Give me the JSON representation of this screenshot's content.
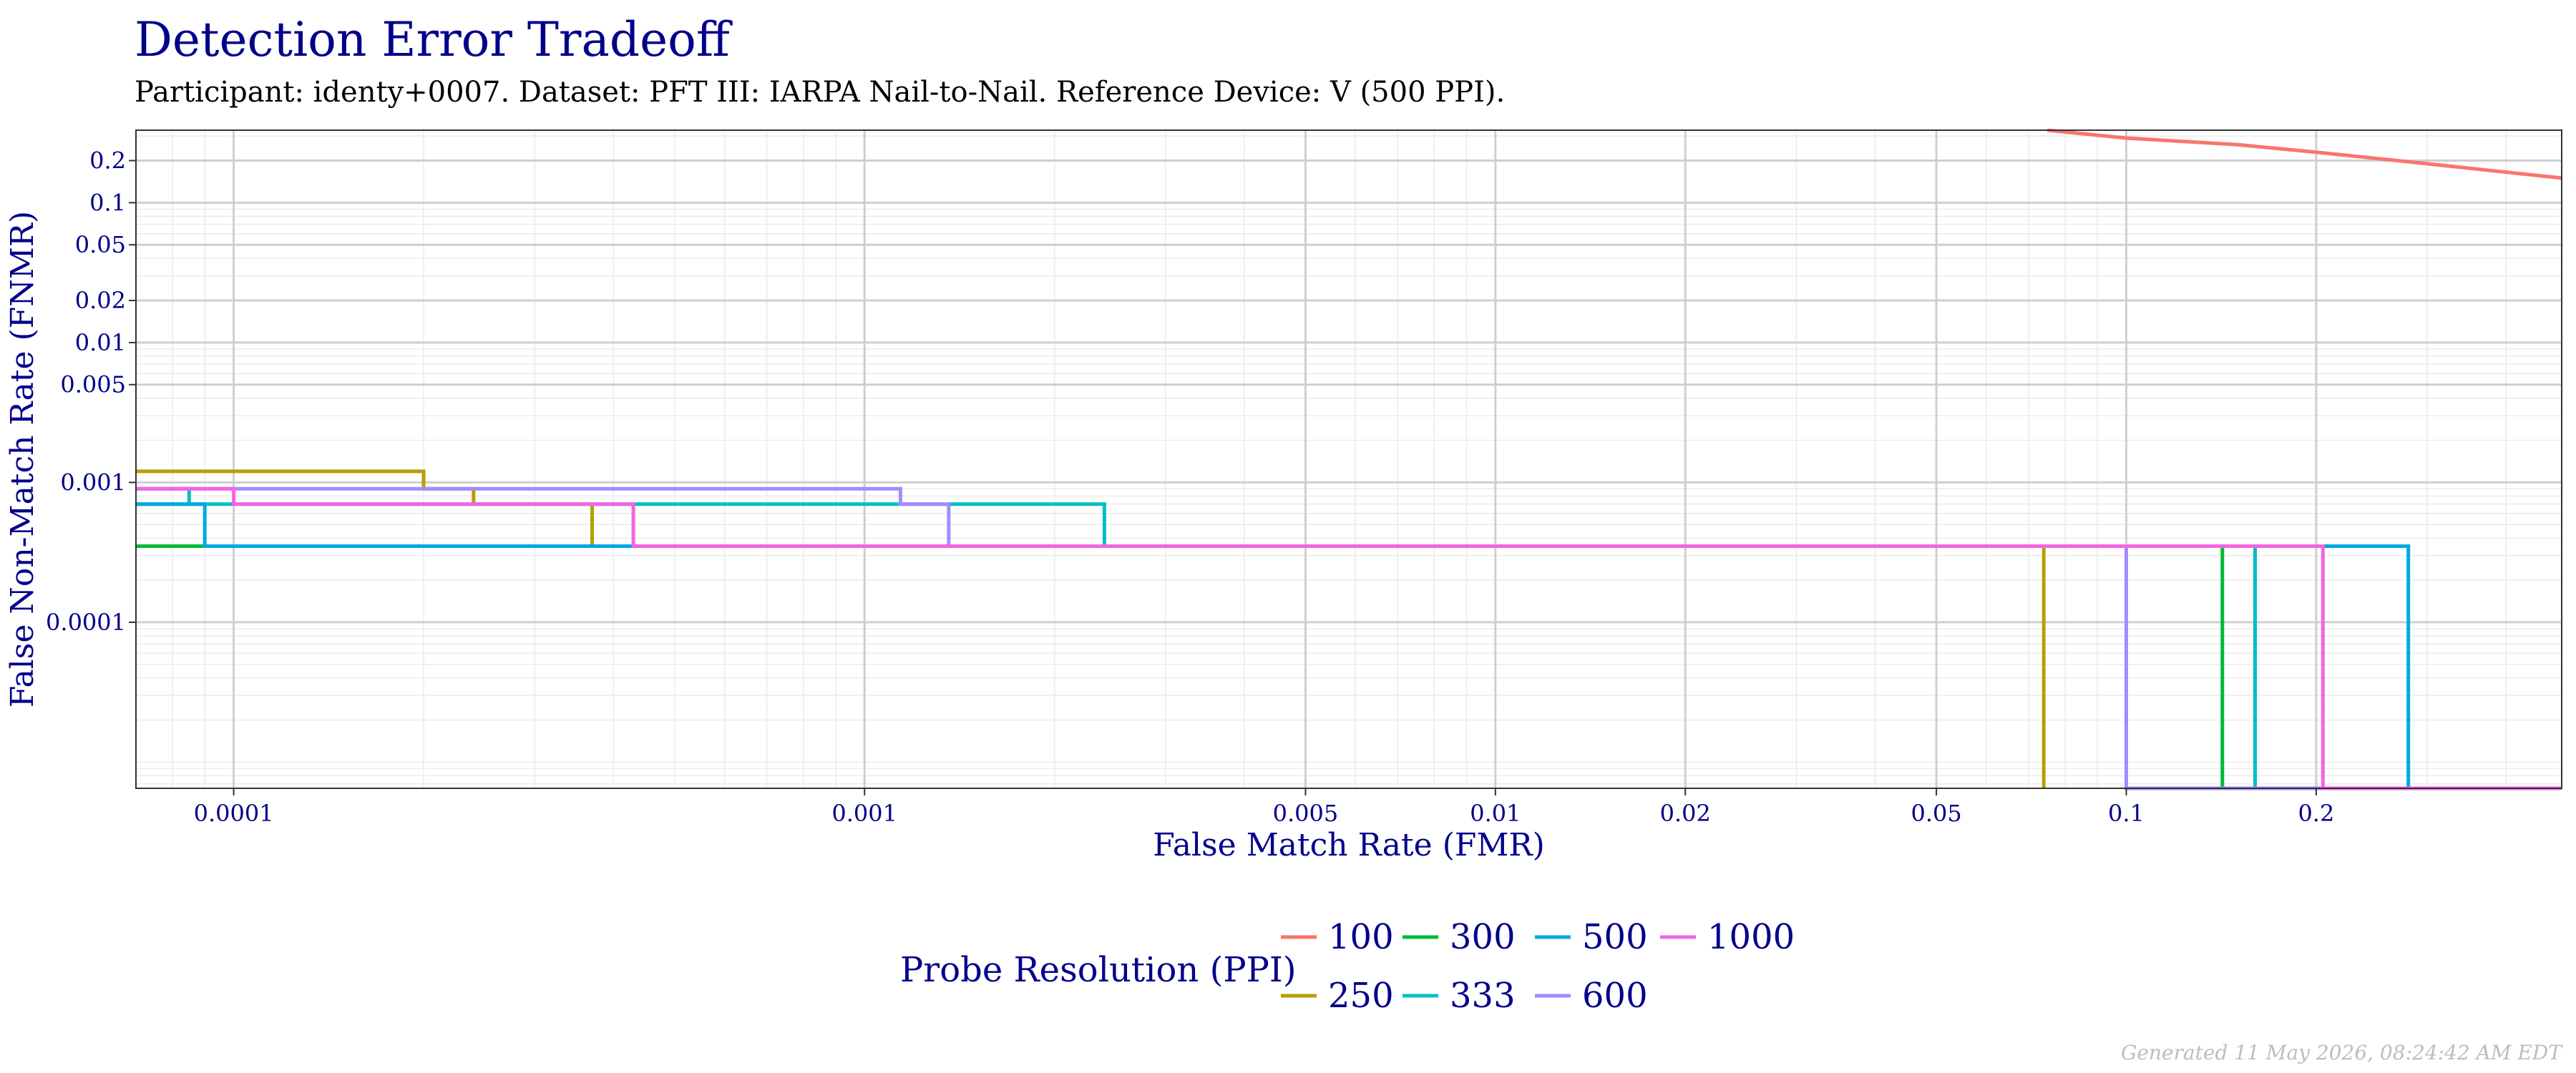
{
  "chart_data": {
    "type": "line",
    "title": "Detection Error Tradeoff",
    "subtitle": "Participant: identy+0007. Dataset: PFT III: IARPA Nail-to-Nail. Reference Device: V (500 PPI).",
    "xlabel": "False Match Rate (FMR)",
    "ylabel": "False Non-Match Rate (FNMR)",
    "x_scale": "log",
    "y_scale": "log",
    "xlim": [
      7e-05,
      0.49
    ],
    "ylim": [
      6.5e-06,
      0.33
    ],
    "x_ticks": [
      {
        "value": 0.0001,
        "label": "0.0001"
      },
      {
        "value": 0.001,
        "label": "0.001"
      },
      {
        "value": 0.005,
        "label": "0.005"
      },
      {
        "value": 0.01,
        "label": "0.01"
      },
      {
        "value": 0.02,
        "label": "0.02"
      },
      {
        "value": 0.05,
        "label": "0.05"
      },
      {
        "value": 0.1,
        "label": "0.1"
      },
      {
        "value": 0.2,
        "label": "0.2"
      }
    ],
    "y_ticks": [
      {
        "value": 0.2,
        "label": "0.2"
      },
      {
        "value": 0.1,
        "label": "0.1"
      },
      {
        "value": 0.05,
        "label": "0.05"
      },
      {
        "value": 0.02,
        "label": "0.02"
      },
      {
        "value": 0.01,
        "label": "0.01"
      },
      {
        "value": 0.005,
        "label": "0.005"
      },
      {
        "value": 0.001,
        "label": "0.001"
      },
      {
        "value": 0.0001,
        "label": "0.0001"
      }
    ],
    "grid": true,
    "legend": {
      "title": "Probe Resolution (PPI)",
      "position": "bottom"
    },
    "series": [
      {
        "name": "100",
        "color": "#F8766D",
        "points": [
          [
            0.075,
            0.33
          ],
          [
            0.1,
            0.29
          ],
          [
            0.15,
            0.26
          ],
          [
            0.2,
            0.23
          ],
          [
            0.3,
            0.19
          ],
          [
            0.49,
            0.15
          ]
        ]
      },
      {
        "name": "250",
        "color": "#B79F00",
        "points": [
          [
            7e-05,
            0.0012
          ],
          [
            0.0002,
            0.0012
          ],
          [
            0.0002,
            0.0009
          ],
          [
            0.00024,
            0.0009
          ],
          [
            0.00024,
            0.0007
          ],
          [
            0.00037,
            0.0007
          ],
          [
            0.00037,
            0.00035
          ],
          [
            0.074,
            0.00035
          ],
          [
            0.074,
            6.5e-06
          ]
        ]
      },
      {
        "name": "300",
        "color": "#00BA38",
        "points": [
          [
            7e-05,
            0.00035
          ],
          [
            0.142,
            0.00035
          ],
          [
            0.142,
            6.5e-06
          ],
          [
            0.49,
            6.5e-06
          ]
        ]
      },
      {
        "name": "333",
        "color": "#00BFC4",
        "points": [
          [
            7e-05,
            0.0007
          ],
          [
            8.5e-05,
            0.0007
          ],
          [
            8.5e-05,
            0.0009
          ],
          [
            7e-05,
            0.0009
          ],
          [
            8.5e-05,
            0.0009
          ],
          [
            8.5e-05,
            0.0007
          ],
          [
            0.0024,
            0.0007
          ],
          [
            0.0024,
            0.00035
          ],
          [
            0.16,
            0.00035
          ],
          [
            0.16,
            6.5e-06
          ]
        ]
      },
      {
        "name": "500",
        "color": "#00A9E0",
        "points": [
          [
            7e-05,
            0.0007
          ],
          [
            9e-05,
            0.0007
          ],
          [
            9e-05,
            0.00035
          ],
          [
            0.28,
            0.00035
          ],
          [
            0.28,
            6.5e-06
          ],
          [
            0.49,
            6.5e-06
          ]
        ]
      },
      {
        "name": "600",
        "color": "#A58AFF",
        "points": [
          [
            7e-05,
            0.0009
          ],
          [
            0.00114,
            0.0009
          ],
          [
            0.00114,
            0.0007
          ],
          [
            0.00136,
            0.0007
          ],
          [
            0.00136,
            0.00035
          ],
          [
            0.1,
            0.00035
          ],
          [
            0.1,
            6.5e-06
          ],
          [
            0.49,
            6.5e-06
          ]
        ]
      },
      {
        "name": "1000",
        "color": "#F564E3",
        "points": [
          [
            7e-05,
            0.0009
          ],
          [
            0.0001,
            0.0009
          ],
          [
            0.0001,
            0.0007
          ],
          [
            0.00043,
            0.0007
          ],
          [
            0.00043,
            0.00035
          ],
          [
            0.205,
            0.00035
          ],
          [
            0.205,
            6.5e-06
          ],
          [
            0.49,
            6.5e-06
          ]
        ]
      }
    ]
  },
  "legend_layout": [
    {
      "name": "100",
      "color": "#F8766D"
    },
    {
      "name": "250",
      "color": "#B79F00"
    },
    {
      "name": "300",
      "color": "#00BA38"
    },
    {
      "name": "333",
      "color": "#00BFC4"
    },
    {
      "name": "500",
      "color": "#00A9E0"
    },
    {
      "name": "600",
      "color": "#A58AFF"
    },
    {
      "name": "1000",
      "color": "#F564E3"
    }
  ],
  "footer": "Generated 11 May 2026, 08:24:42 AM EDT"
}
